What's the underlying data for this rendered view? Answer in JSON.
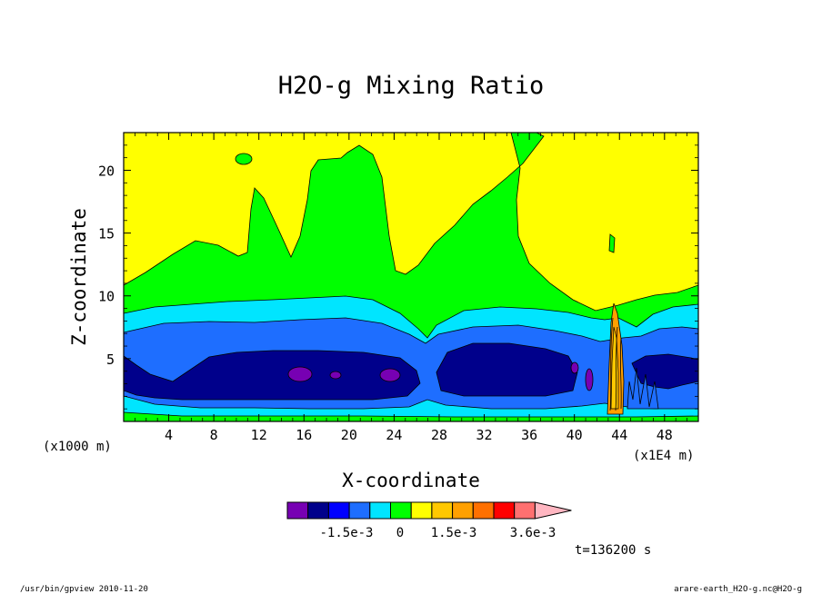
{
  "chart_data": {
    "type": "contour",
    "title": "H2O-g Mixing Ratio",
    "xlabel": "X-coordinate",
    "ylabel": "Z-coordinate",
    "x_unit_left": "(x1000 m)",
    "x_unit_right": "(x1E4 m)",
    "xlim": [
      0,
      51
    ],
    "ylim": [
      0,
      23
    ],
    "x_ticks": [
      4,
      8,
      12,
      16,
      20,
      24,
      28,
      32,
      36,
      40,
      44,
      48
    ],
    "y_ticks": [
      5,
      10,
      15,
      20
    ],
    "colorbar": {
      "colors": [
        "#7700b3",
        "#00008b",
        "#0000ff",
        "#1e6eff",
        "#00e5ff",
        "#00ff00",
        "#ffff00",
        "#ffc800",
        "#ffa000",
        "#ff7000",
        "#ff0000",
        "#ff7070",
        "#ffb6c1"
      ],
      "labels": [
        "-1.5e-3",
        "0",
        "1.5e-3",
        "3.6e-3"
      ]
    },
    "time_label": "t=136200 s"
  },
  "footer": {
    "left": "/usr/bin/gpview  2010-11-20",
    "right": "arare-earth_H2O-g.nc@H2O-g"
  }
}
